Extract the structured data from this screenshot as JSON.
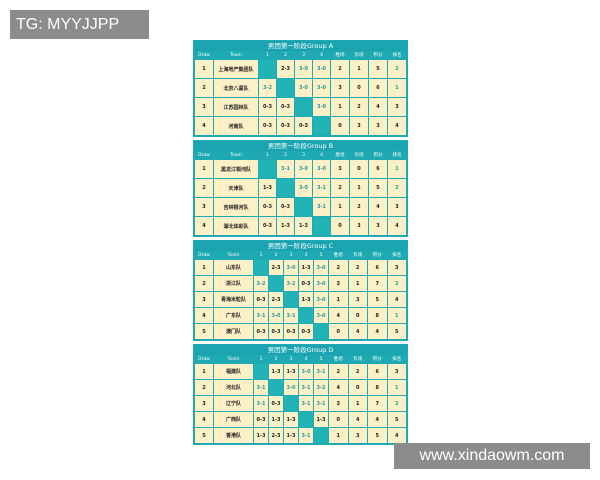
{
  "watermarks": {
    "top_left": "TG: MYYJJPP",
    "bottom_right": "www.xindaowm.com"
  },
  "columns": {
    "draw": "Draw",
    "team": "Team",
    "wins": "胜场",
    "losses": "负场",
    "points": "积分",
    "rank": "排名"
  },
  "colors": {
    "header": "#1fa9b3",
    "cell": "#fbf0c6",
    "diagonal": "#22b3b6",
    "win_text": "#2a9a9a"
  },
  "groups": [
    {
      "title": "男团第一阶段Group A",
      "rows": [
        {
          "draw": "1",
          "team": "上海地产集团队",
          "scores": [
            null,
            "2-3",
            "3-0",
            "3-0"
          ],
          "wins": "2",
          "losses": "1",
          "points": "5",
          "rank": "2"
        },
        {
          "draw": "2",
          "team": "北京八喜队",
          "scores": [
            "3-2",
            null,
            "3-0",
            "3-0"
          ],
          "wins": "3",
          "losses": "0",
          "points": "6",
          "rank": "1"
        },
        {
          "draw": "3",
          "team": "江苏园林队",
          "scores": [
            "0-3",
            "0-3",
            null,
            "3-0"
          ],
          "wins": "1",
          "losses": "2",
          "points": "4",
          "rank": "3"
        },
        {
          "draw": "4",
          "team": "河南队",
          "scores": [
            "0-3",
            "0-3",
            "0-3",
            null
          ],
          "wins": "0",
          "losses": "3",
          "points": "3",
          "rank": "4"
        }
      ]
    },
    {
      "title": "男团第一阶段Group B",
      "rows": [
        {
          "draw": "1",
          "team": "黑龙江银河队",
          "scores": [
            null,
            "3-1",
            "3-0",
            "3-0"
          ],
          "wins": "3",
          "losses": "0",
          "points": "6",
          "rank": "1"
        },
        {
          "draw": "2",
          "team": "天津队",
          "scores": [
            "1-3",
            null,
            "3-0",
            "3-1"
          ],
          "wins": "2",
          "losses": "1",
          "points": "5",
          "rank": "2"
        },
        {
          "draw": "3",
          "team": "吉林银河队",
          "scores": [
            "0-3",
            "0-3",
            null,
            "3-1"
          ],
          "wins": "1",
          "losses": "2",
          "points": "4",
          "rank": "3"
        },
        {
          "draw": "4",
          "team": "湖北体彩队",
          "scores": [
            "0-3",
            "1-3",
            "1-3",
            null
          ],
          "wins": "0",
          "losses": "3",
          "points": "3",
          "rank": "4"
        }
      ]
    },
    {
      "title": "男团第一阶段Group C",
      "rows": [
        {
          "draw": "1",
          "team": "山东队",
          "scores": [
            null,
            "2-3",
            "3-0",
            "1-3",
            "3-0"
          ],
          "wins": "2",
          "losses": "2",
          "points": "6",
          "rank": "3"
        },
        {
          "draw": "2",
          "team": "浙江队",
          "scores": [
            "3-2",
            null,
            "3-2",
            "0-3",
            "3-0"
          ],
          "wins": "3",
          "losses": "1",
          "points": "7",
          "rank": "2"
        },
        {
          "draw": "3",
          "team": "青海米粒队",
          "scores": [
            "0-3",
            "2-3",
            null,
            "1-3",
            "3-0"
          ],
          "wins": "1",
          "losses": "3",
          "points": "5",
          "rank": "4"
        },
        {
          "draw": "4",
          "team": "广东队",
          "scores": [
            "3-1",
            "3-0",
            "3-1",
            null,
            "3-0"
          ],
          "wins": "4",
          "losses": "0",
          "points": "8",
          "rank": "1"
        },
        {
          "draw": "5",
          "team": "澳门队",
          "scores": [
            "0-3",
            "0-3",
            "0-3",
            "0-3",
            null
          ],
          "wins": "0",
          "losses": "4",
          "points": "4",
          "rank": "5"
        }
      ]
    },
    {
      "title": "男团第一阶段Group D",
      "rows": [
        {
          "draw": "1",
          "team": "福建队",
          "scores": [
            null,
            "1-3",
            "1-3",
            "3-0",
            "3-1"
          ],
          "wins": "2",
          "losses": "2",
          "points": "6",
          "rank": "3"
        },
        {
          "draw": "2",
          "team": "河北队",
          "scores": [
            "3-1",
            null,
            "3-0",
            "3-1",
            "3-2"
          ],
          "wins": "4",
          "losses": "0",
          "points": "8",
          "rank": "1"
        },
        {
          "draw": "3",
          "team": "辽宁队",
          "scores": [
            "3-1",
            "0-3",
            null,
            "3-1",
            "3-1"
          ],
          "wins": "3",
          "losses": "1",
          "points": "7",
          "rank": "2"
        },
        {
          "draw": "4",
          "team": "广西队",
          "scores": [
            "0-3",
            "1-3",
            "1-3",
            null,
            "1-3"
          ],
          "wins": "0",
          "losses": "4",
          "points": "4",
          "rank": "5"
        },
        {
          "draw": "5",
          "team": "香港队",
          "scores": [
            "1-3",
            "2-3",
            "1-3",
            "3-1",
            null
          ],
          "wins": "1",
          "losses": "3",
          "points": "5",
          "rank": "4"
        }
      ]
    }
  ]
}
